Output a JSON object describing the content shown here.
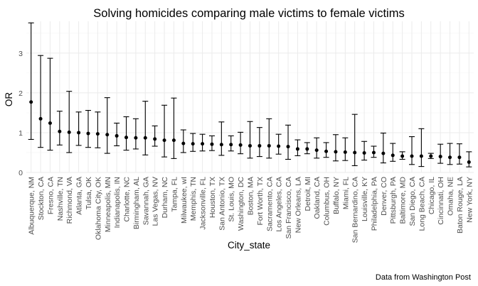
{
  "chart_data": {
    "type": "errorbar",
    "title": "Solving homicides comparing male victims to female victims",
    "xlabel": "City_state",
    "ylabel": "OR",
    "caption": "Data from Washington Post",
    "ylim": [
      0,
      3.8
    ],
    "yticks": [
      0,
      1,
      2,
      3
    ],
    "grid": true,
    "legend": "none",
    "categories": [
      "Albuquerque, NM",
      "Stockton, CA",
      "Fresno, CA",
      "Nashville, TN",
      "Richmond, VA",
      "Atlanta, GA",
      "Tulsa, OK",
      "Oklahoma City, OK",
      "Minneapolis, MN",
      "Indianapolis, IN",
      "Charlotte, NC",
      "Birmingham, AL",
      "Savannah, GA",
      "Las Vegas, NV",
      "Durham, NC",
      "Tampa, FL",
      "Milwaukee, wI",
      "Memphis, TN",
      "Jacksonville, FL",
      "Houston, TX",
      "San Antonio, TX",
      "St. Louis, MO",
      "Washington, DC",
      "Boston, MA",
      "Fort Worth, TX",
      "Sacramento, CA",
      "Los Angeles, CA",
      "San Francisco, CA",
      "New Orleans, LA",
      "Detroit, MI",
      "Oakland, CA",
      "Columbus, OH",
      "Buffalo, NY",
      "Miami, FL",
      "San Bernardino, CA",
      "Louisville, KY",
      "Philadelphia, PA",
      "Denver, CO",
      "Pittsburgh, PA",
      "Baltimore, MD",
      "San Diego, CA",
      "Long Beach, CA",
      "Chicago, IL",
      "Cincinnati, OH",
      "Omaha, NE",
      "Baton Rouge, LA",
      "New York, NY"
    ],
    "estimate": [
      1.77,
      1.35,
      1.24,
      1.03,
      1.01,
      1.0,
      0.98,
      0.97,
      0.95,
      0.92,
      0.88,
      0.87,
      0.87,
      0.84,
      0.81,
      0.81,
      0.73,
      0.72,
      0.72,
      0.71,
      0.7,
      0.7,
      0.69,
      0.67,
      0.67,
      0.67,
      0.66,
      0.65,
      0.59,
      0.59,
      0.56,
      0.53,
      0.52,
      0.51,
      0.5,
      0.49,
      0.5,
      0.48,
      0.43,
      0.41,
      0.41,
      0.41,
      0.41,
      0.4,
      0.38,
      0.38,
      0.26
    ],
    "ci_low": [
      0.83,
      0.63,
      0.56,
      0.69,
      0.5,
      0.68,
      0.63,
      0.62,
      0.48,
      0.67,
      0.56,
      0.59,
      0.44,
      0.66,
      0.39,
      0.35,
      0.5,
      0.53,
      0.54,
      0.55,
      0.43,
      0.54,
      0.47,
      0.36,
      0.4,
      0.36,
      0.46,
      0.33,
      0.42,
      0.47,
      0.36,
      0.38,
      0.29,
      0.3,
      0.17,
      0.31,
      0.38,
      0.24,
      0.28,
      0.33,
      0.2,
      0.15,
      0.35,
      0.23,
      0.2,
      0.21,
      0.14
    ],
    "ci_high": [
      3.76,
      2.94,
      2.87,
      1.54,
      2.04,
      1.52,
      1.56,
      1.52,
      1.88,
      1.24,
      1.4,
      1.35,
      1.79,
      1.17,
      1.69,
      1.87,
      1.07,
      0.98,
      0.96,
      0.92,
      1.27,
      0.92,
      1.01,
      1.28,
      1.13,
      1.35,
      0.96,
      1.19,
      0.82,
      0.75,
      0.87,
      0.75,
      0.95,
      0.87,
      1.46,
      0.78,
      0.66,
      0.99,
      0.73,
      0.52,
      0.9,
      1.1,
      0.48,
      0.71,
      0.73,
      0.72,
      0.52
    ]
  }
}
